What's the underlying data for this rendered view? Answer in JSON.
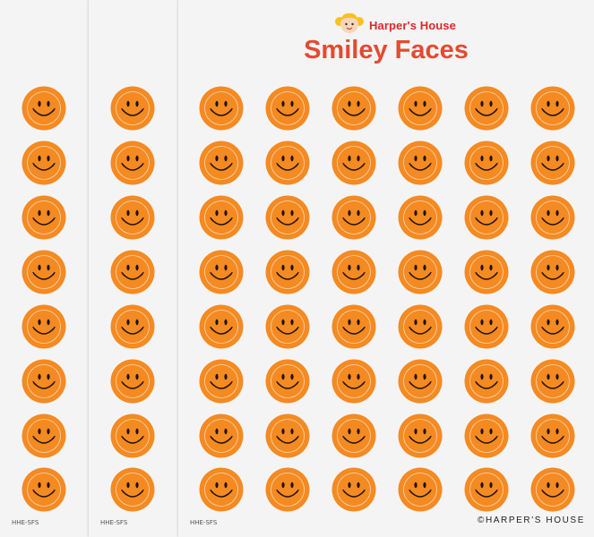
{
  "colors": {
    "sticker_fill": "#f48a22",
    "sticker_ring": "#fbd6ad",
    "face_line": "#1f1205",
    "brand_red": "#e0262b",
    "title_orange": "#e44a30"
  },
  "brand": {
    "name": "Harper's House",
    "mascot_icon": "girl-face-icon"
  },
  "title": "Smiley Faces",
  "sheets": [
    {
      "code": "HHE-SFS"
    },
    {
      "code": "HHE-SFS"
    },
    {
      "code": "HHE-SFS"
    }
  ],
  "grid": {
    "rows": 8,
    "front_columns": 6,
    "sticker_icon": "smiley-face-icon"
  },
  "copyright": "©HARPER'S HOUSE"
}
